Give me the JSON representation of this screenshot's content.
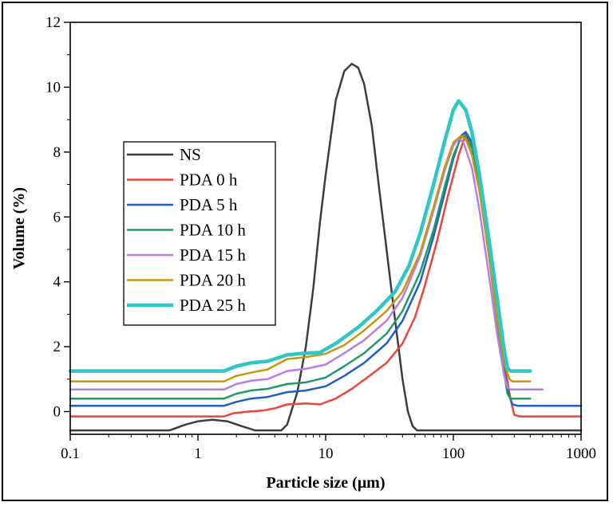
{
  "chart_data": {
    "type": "line",
    "title": "",
    "xlabel": "Particle size (μm)",
    "ylabel": "Volume (%)",
    "xscale": "log",
    "xlim": [
      0.1,
      1000
    ],
    "ylim": [
      -0.7,
      12
    ],
    "x_ticks": [
      {
        "value": 0.1,
        "label": "0.1"
      },
      {
        "value": 1,
        "label": "1"
      },
      {
        "value": 10,
        "label": "10"
      },
      {
        "value": 100,
        "label": "100"
      },
      {
        "value": 1000,
        "label": "1000"
      }
    ],
    "y_ticks": [
      {
        "value": 0,
        "label": "0"
      },
      {
        "value": 2,
        "label": "2"
      },
      {
        "value": 4,
        "label": "4"
      },
      {
        "value": 6,
        "label": "6"
      },
      {
        "value": 8,
        "label": "8"
      },
      {
        "value": 10,
        "label": "10"
      },
      {
        "value": 12,
        "label": "12"
      }
    ],
    "legend_position": "middle-left",
    "series": [
      {
        "name": "NS",
        "color": "#3d3d3d",
        "width": 2.5,
        "points": [
          [
            0.1,
            -0.58
          ],
          [
            0.6,
            -0.58
          ],
          [
            0.8,
            -0.4
          ],
          [
            1.0,
            -0.3
          ],
          [
            1.3,
            -0.25
          ],
          [
            1.7,
            -0.3
          ],
          [
            2.2,
            -0.45
          ],
          [
            2.8,
            -0.58
          ],
          [
            4.5,
            -0.58
          ],
          [
            5.0,
            -0.4
          ],
          [
            6,
            0.6
          ],
          [
            7,
            2.0
          ],
          [
            8,
            3.8
          ],
          [
            9,
            5.8
          ],
          [
            10,
            7.3
          ],
          [
            11,
            8.5
          ],
          [
            12,
            9.6
          ],
          [
            14,
            10.5
          ],
          [
            16,
            10.72
          ],
          [
            18,
            10.6
          ],
          [
            20,
            10.1
          ],
          [
            23,
            8.8
          ],
          [
            26,
            7.0
          ],
          [
            30,
            5.0
          ],
          [
            35,
            2.8
          ],
          [
            40,
            1.0
          ],
          [
            44,
            0.0
          ],
          [
            48,
            -0.45
          ],
          [
            52,
            -0.58
          ],
          [
            1000,
            -0.58
          ]
        ]
      },
      {
        "name": "PDA 0 h",
        "color": "#f0433a",
        "width": 2.5,
        "points": [
          [
            0.1,
            -0.15
          ],
          [
            1.6,
            -0.15
          ],
          [
            1.9,
            -0.05
          ],
          [
            2.5,
            0.0
          ],
          [
            3.2,
            0.03
          ],
          [
            4,
            0.1
          ],
          [
            5,
            0.22
          ],
          [
            7,
            0.25
          ],
          [
            9,
            0.22
          ],
          [
            12,
            0.4
          ],
          [
            16,
            0.7
          ],
          [
            22,
            1.1
          ],
          [
            30,
            1.5
          ],
          [
            40,
            2.1
          ],
          [
            50,
            2.9
          ],
          [
            60,
            3.9
          ],
          [
            75,
            5.3
          ],
          [
            90,
            6.6
          ],
          [
            110,
            7.9
          ],
          [
            125,
            8.55
          ],
          [
            140,
            8.2
          ],
          [
            160,
            7.0
          ],
          [
            190,
            5.0
          ],
          [
            220,
            3.0
          ],
          [
            250,
            1.5
          ],
          [
            280,
            0.4
          ],
          [
            300,
            -0.1
          ],
          [
            330,
            -0.15
          ],
          [
            1000,
            -0.15
          ]
        ]
      },
      {
        "name": "PDA 5 h",
        "color": "#1f5fc6",
        "width": 2.5,
        "points": [
          [
            0.1,
            0.18
          ],
          [
            1.6,
            0.18
          ],
          [
            2.0,
            0.3
          ],
          [
            2.6,
            0.4
          ],
          [
            3.5,
            0.45
          ],
          [
            5,
            0.6
          ],
          [
            7,
            0.65
          ],
          [
            10,
            0.78
          ],
          [
            14,
            1.1
          ],
          [
            20,
            1.5
          ],
          [
            30,
            2.1
          ],
          [
            40,
            2.8
          ],
          [
            55,
            4.0
          ],
          [
            70,
            5.4
          ],
          [
            85,
            6.7
          ],
          [
            100,
            7.8
          ],
          [
            115,
            8.5
          ],
          [
            125,
            8.62
          ],
          [
            140,
            8.3
          ],
          [
            160,
            7.1
          ],
          [
            190,
            5.0
          ],
          [
            220,
            3.0
          ],
          [
            250,
            1.3
          ],
          [
            270,
            0.55
          ],
          [
            290,
            0.22
          ],
          [
            320,
            0.18
          ],
          [
            1000,
            0.18
          ]
        ]
      },
      {
        "name": "PDA 10 h",
        "color": "#1f9a6a",
        "width": 2.5,
        "points": [
          [
            0.1,
            0.4
          ],
          [
            1.6,
            0.4
          ],
          [
            2.0,
            0.55
          ],
          [
            2.6,
            0.65
          ],
          [
            3.5,
            0.7
          ],
          [
            5,
            0.85
          ],
          [
            7,
            0.9
          ],
          [
            10,
            1.05
          ],
          [
            14,
            1.4
          ],
          [
            20,
            1.8
          ],
          [
            30,
            2.4
          ],
          [
            40,
            3.1
          ],
          [
            55,
            4.3
          ],
          [
            70,
            5.6
          ],
          [
            85,
            6.9
          ],
          [
            100,
            7.9
          ],
          [
            115,
            8.45
          ],
          [
            125,
            8.5
          ],
          [
            140,
            8.1
          ],
          [
            160,
            6.9
          ],
          [
            190,
            4.8
          ],
          [
            220,
            2.8
          ],
          [
            250,
            1.2
          ],
          [
            265,
            0.55
          ],
          [
            280,
            0.4
          ],
          [
            400,
            0.4
          ]
        ]
      },
      {
        "name": "PDA 15 h",
        "color": "#b97de4",
        "width": 2.5,
        "points": [
          [
            0.1,
            0.68
          ],
          [
            1.6,
            0.68
          ],
          [
            2.0,
            0.85
          ],
          [
            2.6,
            0.95
          ],
          [
            3.5,
            1.0
          ],
          [
            5,
            1.25
          ],
          [
            7,
            1.32
          ],
          [
            10,
            1.45
          ],
          [
            14,
            1.8
          ],
          [
            20,
            2.2
          ],
          [
            30,
            2.8
          ],
          [
            40,
            3.5
          ],
          [
            55,
            4.8
          ],
          [
            70,
            6.2
          ],
          [
            85,
            7.4
          ],
          [
            100,
            8.2
          ],
          [
            110,
            8.42
          ],
          [
            120,
            8.3
          ],
          [
            140,
            7.5
          ],
          [
            160,
            6.2
          ],
          [
            190,
            4.2
          ],
          [
            220,
            2.4
          ],
          [
            250,
            1.1
          ],
          [
            265,
            0.75
          ],
          [
            280,
            0.68
          ],
          [
            500,
            0.68
          ]
        ]
      },
      {
        "name": "PDA 20 h",
        "color": "#c8960e",
        "width": 2.5,
        "points": [
          [
            0.1,
            0.93
          ],
          [
            1.6,
            0.93
          ],
          [
            2.0,
            1.1
          ],
          [
            2.6,
            1.2
          ],
          [
            3.5,
            1.3
          ],
          [
            5,
            1.62
          ],
          [
            7,
            1.68
          ],
          [
            10,
            1.78
          ],
          [
            14,
            2.05
          ],
          [
            20,
            2.5
          ],
          [
            30,
            3.1
          ],
          [
            40,
            3.7
          ],
          [
            55,
            4.9
          ],
          [
            70,
            6.3
          ],
          [
            85,
            7.5
          ],
          [
            100,
            8.3
          ],
          [
            115,
            8.5
          ],
          [
            125,
            8.4
          ],
          [
            140,
            7.9
          ],
          [
            160,
            6.8
          ],
          [
            190,
            4.8
          ],
          [
            220,
            2.9
          ],
          [
            250,
            1.5
          ],
          [
            275,
            1.0
          ],
          [
            290,
            0.93
          ],
          [
            400,
            0.93
          ]
        ]
      },
      {
        "name": "PDA 25 h",
        "color": "#2ec7c7",
        "width": 4.5,
        "points": [
          [
            0.1,
            1.25
          ],
          [
            1.6,
            1.25
          ],
          [
            2.0,
            1.4
          ],
          [
            2.6,
            1.5
          ],
          [
            3.5,
            1.55
          ],
          [
            5,
            1.75
          ],
          [
            7,
            1.8
          ],
          [
            9,
            1.82
          ],
          [
            12,
            2.1
          ],
          [
            18,
            2.6
          ],
          [
            25,
            3.1
          ],
          [
            35,
            3.7
          ],
          [
            45,
            4.5
          ],
          [
            55,
            5.5
          ],
          [
            70,
            7.0
          ],
          [
            85,
            8.3
          ],
          [
            100,
            9.3
          ],
          [
            110,
            9.58
          ],
          [
            125,
            9.3
          ],
          [
            140,
            8.6
          ],
          [
            160,
            7.3
          ],
          [
            190,
            5.3
          ],
          [
            220,
            3.5
          ],
          [
            250,
            1.9
          ],
          [
            265,
            1.35
          ],
          [
            280,
            1.25
          ],
          [
            400,
            1.25
          ]
        ]
      }
    ]
  }
}
